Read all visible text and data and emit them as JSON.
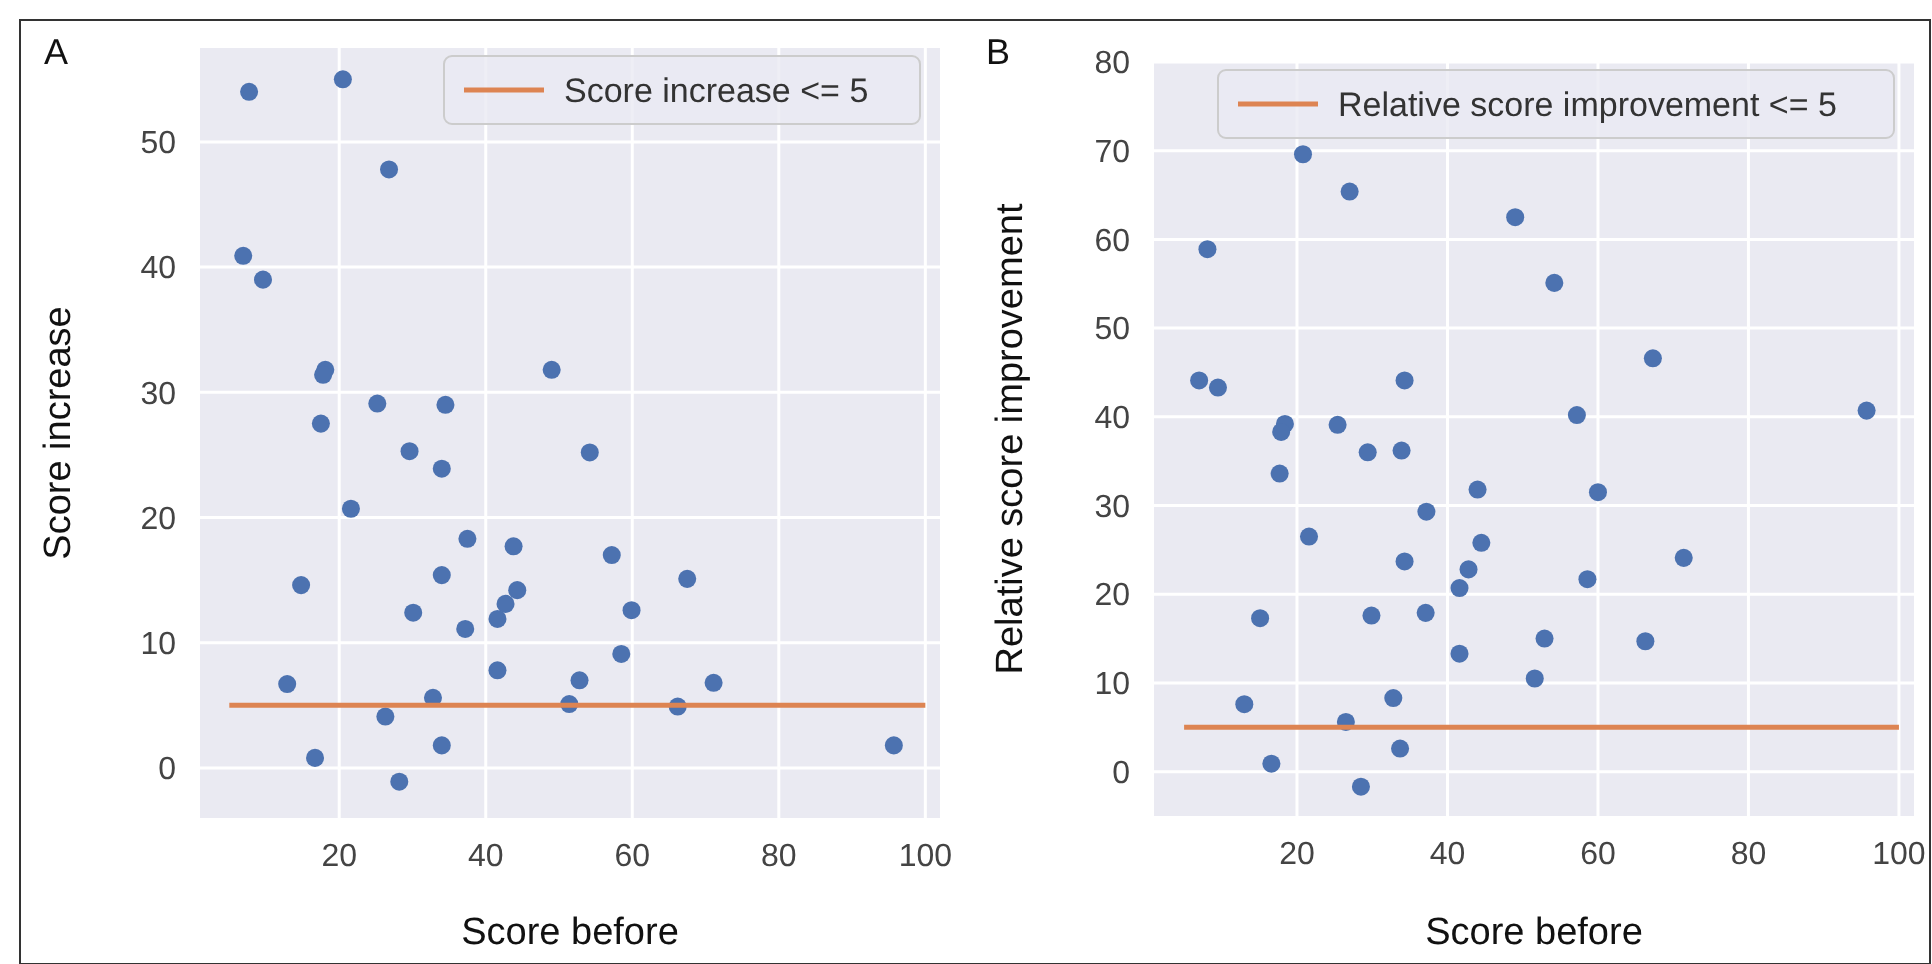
{
  "chart_data": [
    {
      "type": "scatter",
      "title": "A",
      "xlabel": "Score before",
      "ylabel": "Score increase",
      "xlim": [
        1,
        102
      ],
      "ylim": [
        -4,
        57.5
      ],
      "xticks": [
        20,
        40,
        60,
        80,
        100
      ],
      "yticks": [
        0,
        10,
        20,
        30,
        40,
        50
      ],
      "grid": true,
      "legend": "top right",
      "series": [
        {
          "marker": "circle",
          "color": "#4c72b0",
          "x": [
            7.7,
            20.5,
            26.8,
            6.9,
            9.6,
            18.1,
            17.8,
            49.0,
            25.2,
            34.5,
            17.5,
            29.6,
            54.2,
            34.0,
            21.6,
            37.5,
            43.8,
            57.2,
            14.8,
            34.0,
            44.3,
            67.5,
            30.1,
            42.7,
            41.6,
            59.9,
            37.2,
            41.6,
            58.5,
            12.9,
            52.8,
            71.1,
            32.8,
            51.4,
            66.2,
            26.3,
            16.7,
            34.0,
            28.2,
            95.7
          ],
          "values": [
            54.0,
            55.0,
            47.8,
            40.9,
            39.0,
            31.8,
            31.4,
            31.8,
            29.1,
            29.0,
            27.5,
            25.3,
            25.2,
            23.9,
            20.7,
            18.3,
            17.7,
            17.0,
            14.6,
            15.4,
            14.2,
            15.1,
            12.4,
            13.1,
            11.9,
            12.6,
            11.1,
            7.8,
            9.1,
            6.7,
            7.0,
            6.8,
            5.6,
            5.1,
            4.9,
            4.1,
            0.8,
            1.8,
            -1.1,
            1.8
          ]
        },
        {
          "type": "line",
          "name": "Score increase <= 5",
          "color": "#dd8452",
          "x": [
            5,
            100
          ],
          "values": [
            5,
            5
          ]
        }
      ]
    },
    {
      "type": "scatter",
      "title": "B",
      "xlabel": "Score before",
      "ylabel": "Relative score improvement",
      "xlim": [
        1,
        102
      ],
      "ylim": [
        -5,
        80
      ],
      "xticks": [
        20,
        40,
        60,
        80,
        100
      ],
      "yticks": [
        0,
        10,
        20,
        30,
        40,
        50,
        60,
        70,
        80
      ],
      "grid": true,
      "legend": "top right",
      "series": [
        {
          "marker": "circle",
          "color": "#4c72b0",
          "x": [
            8.1,
            20.8,
            27.0,
            49.0,
            54.2,
            67.3,
            7.0,
            9.5,
            34.3,
            57.2,
            95.7,
            18.4,
            17.9,
            25.4,
            29.4,
            33.9,
            17.7,
            44.0,
            60.0,
            37.2,
            21.6,
            44.5,
            71.4,
            34.3,
            42.8,
            41.6,
            58.6,
            15.1,
            29.9,
            37.1,
            52.9,
            66.3,
            41.6,
            51.6,
            13.0,
            32.8,
            26.5,
            33.7,
            16.6,
            28.5
          ],
          "values": [
            58.9,
            69.6,
            65.4,
            62.5,
            55.1,
            46.6,
            44.1,
            43.3,
            44.1,
            40.2,
            40.7,
            39.2,
            38.3,
            39.1,
            36.0,
            36.2,
            33.6,
            31.8,
            31.5,
            29.3,
            26.5,
            25.8,
            24.1,
            23.7,
            22.8,
            20.7,
            21.7,
            17.3,
            17.6,
            17.9,
            15.0,
            14.7,
            13.3,
            10.5,
            7.6,
            8.3,
            5.6,
            2.6,
            0.9,
            -1.7
          ]
        },
        {
          "type": "line",
          "name": "Relative score improvement <= 5",
          "color": "#dd8452",
          "x": [
            5,
            100
          ],
          "values": [
            5,
            5
          ]
        }
      ]
    }
  ]
}
